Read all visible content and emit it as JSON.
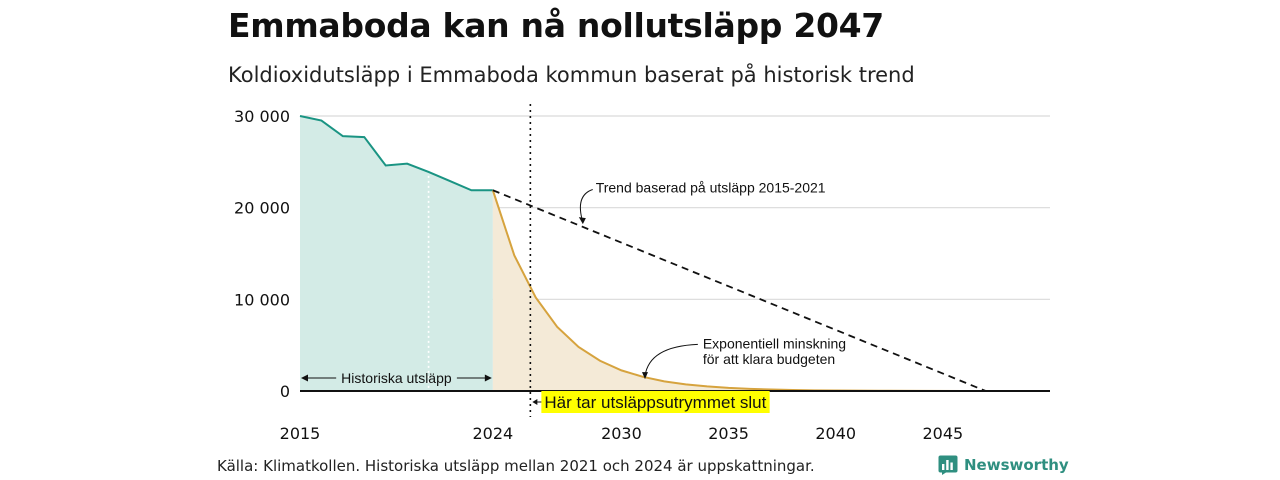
{
  "title": "Emmaboda kan nå nollutsläpp 2047",
  "subtitle": "Koldioxidutsläpp i Emmaboda kommun baserat på historisk trend",
  "source": "Källa: Klimatkollen. Historiska utsläpp mellan 2021 och 2024 är uppskattningar.",
  "brand": {
    "name": "Newsworthy"
  },
  "colors": {
    "historical_line": "#1a9483",
    "historical_fill": "#d3ebe6",
    "budget_line": "#d6a33e",
    "budget_fill": "#f4ead7",
    "trend_line": "#111111",
    "highlight": "#ffff00",
    "grid": "#d9d9d9"
  },
  "chart_data": {
    "type": "line",
    "title": "Emmaboda kan nå nollutsläpp 2047",
    "subtitle": "Koldioxidutsläpp i Emmaboda kommun baserat på historisk trend",
    "xlabel": "",
    "ylabel": "",
    "xlim": [
      2015,
      2050
    ],
    "ylim": [
      0,
      30000
    ],
    "grid": true,
    "x_ticks": [
      {
        "value": 2015,
        "label": "2015"
      },
      {
        "value": 2024,
        "label": "2024"
      },
      {
        "value": 2030,
        "label": "2030"
      },
      {
        "value": 2035,
        "label": "2035"
      },
      {
        "value": 2040,
        "label": "2040"
      },
      {
        "value": 2045,
        "label": "2045"
      }
    ],
    "y_ticks": [
      {
        "value": 0,
        "label": "0"
      },
      {
        "value": 10000,
        "label": "10 000"
      },
      {
        "value": 20000,
        "label": "20 000"
      },
      {
        "value": 30000,
        "label": "30 000"
      }
    ],
    "series": [
      {
        "name": "Historiska utsläpp",
        "style": "solid-filled",
        "x": [
          2015,
          2016,
          2017,
          2018,
          2019,
          2020,
          2021,
          2022,
          2023,
          2024
        ],
        "y": [
          30000,
          29500,
          27800,
          27700,
          24600,
          24800,
          23900,
          22900,
          21900,
          21900
        ]
      },
      {
        "name": "Exponentiell minskning för att klara budgeten",
        "style": "solid-filled",
        "x": [
          2024,
          2025,
          2026,
          2027,
          2028,
          2029,
          2030,
          2031,
          2032,
          2033,
          2034,
          2035,
          2036,
          2037,
          2038,
          2039,
          2040,
          2042,
          2044,
          2046,
          2048,
          2050
        ],
        "y": [
          21900,
          14800,
          10200,
          7000,
          4800,
          3300,
          2250,
          1550,
          1050,
          720,
          500,
          340,
          235,
          160,
          110,
          75,
          50,
          25,
          12,
          6,
          3,
          0
        ]
      },
      {
        "name": "Trend baserad på utsläpp 2015-2021",
        "style": "dashed",
        "x": [
          2024,
          2047,
          2050
        ],
        "y": [
          21900,
          0,
          0
        ]
      }
    ],
    "vertical_markers": [
      {
        "x": 2021,
        "style": "white-dotted",
        "label": ""
      },
      {
        "x": 2025.75,
        "style": "black-dotted",
        "label": "Här tar utsläppsutrymmet slut"
      }
    ],
    "annotations": [
      {
        "text": "Trend baserad på utsläpp 2015-2021",
        "x": 2028.8,
        "y": 22200,
        "arrow_to": [
          2028.2,
          18200
        ]
      },
      {
        "text": "Exponentiell minskning",
        "x": 2033.8,
        "y": 5200,
        "arrow_to": [
          2031.1,
          1300
        ]
      },
      {
        "text": "för att klara budgeten",
        "x": 2033.8,
        "y": 3500
      },
      {
        "text": "Historiska utsläpp",
        "x": 2019.5,
        "y": 1300,
        "span": [
          2015,
          2024
        ]
      }
    ],
    "budget_end_label": "Här tar utsläppsutrymmet slut"
  }
}
